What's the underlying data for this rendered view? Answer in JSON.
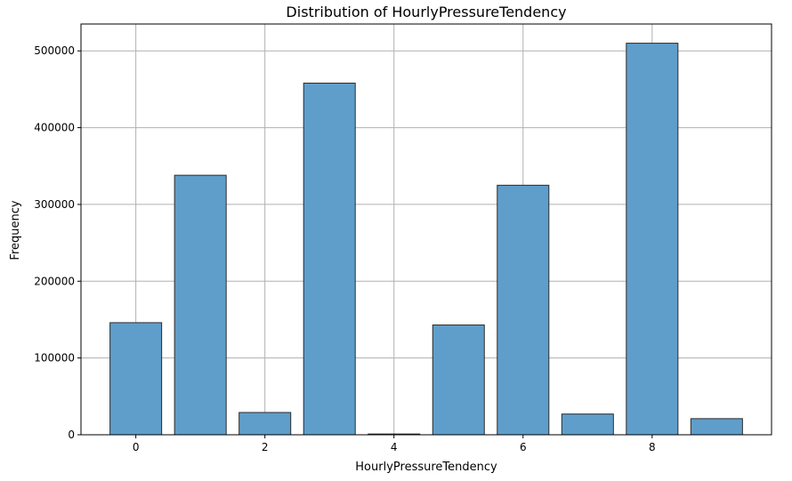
{
  "chart_data": {
    "type": "bar",
    "title": "Distribution of HourlyPressureTendency",
    "xlabel": "HourlyPressureTendency",
    "ylabel": "Frequency",
    "x": [
      0,
      1,
      2,
      3,
      4,
      5,
      6,
      7,
      8,
      9
    ],
    "values": [
      146000,
      338000,
      29000,
      458000,
      1000,
      143000,
      325000,
      27000,
      510000,
      21000
    ],
    "xlim": [
      -0.85,
      9.85
    ],
    "ylim": [
      0,
      535000
    ],
    "xticks": [
      0,
      2,
      4,
      6,
      8
    ],
    "xtick_labels": [
      "0",
      "2",
      "4",
      "6",
      "8"
    ],
    "yticks": [
      0,
      100000,
      200000,
      300000,
      400000,
      500000
    ],
    "ytick_labels": [
      "0",
      "100000",
      "200000",
      "300000",
      "400000",
      "500000"
    ],
    "grid": true,
    "bar_color": "#5f9ecb",
    "bar_edge_color": "#2b2b2b",
    "grid_color": "#b0b0b0"
  }
}
